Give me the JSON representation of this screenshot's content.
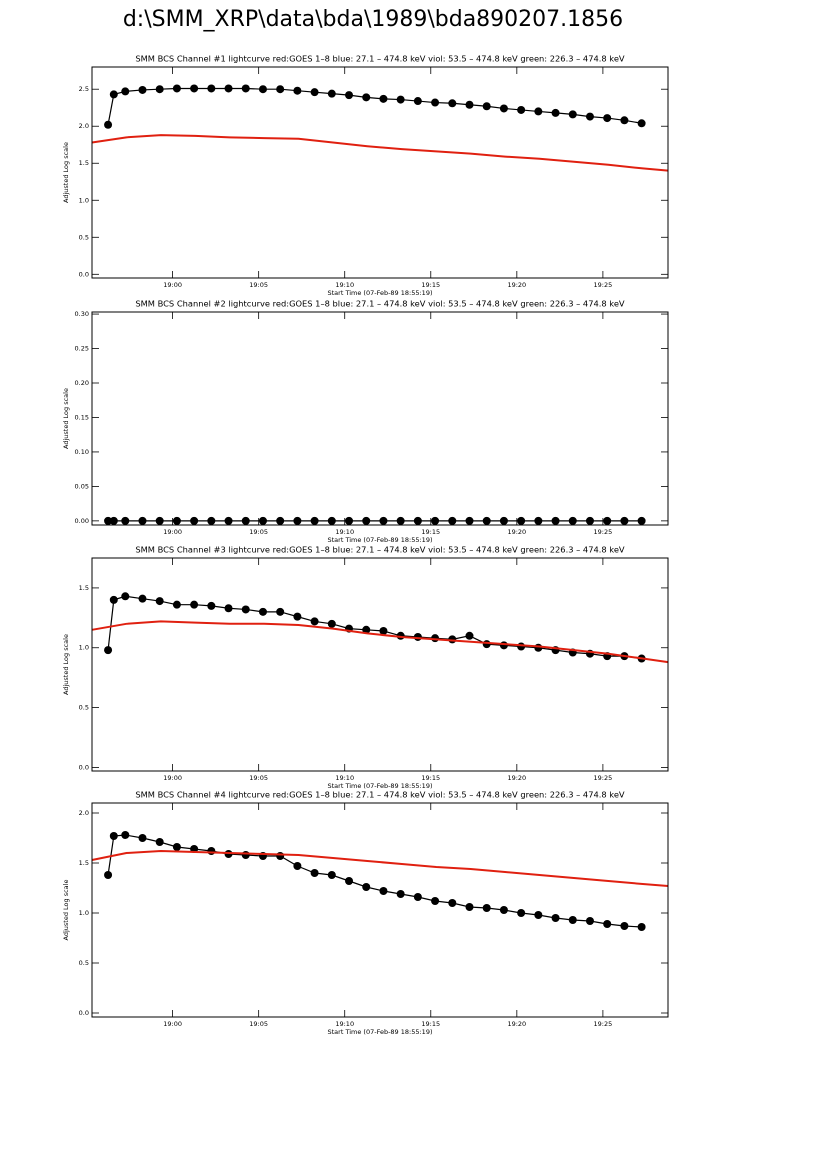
{
  "title": "d:\\SMM_XRP\\data\\bda\\1989\\bda890207.1856",
  "chart_data": [
    {
      "type": "line",
      "title": "SMM BCS Channel #1 lightcurve  red:GOES 1–8  blue: 27.1 – 474.8 keV  viol: 53.5 – 474.8 keV  green: 226.3 – 474.8 keV",
      "xlabel": "Start Time (07-Feb-89 18:55:19)",
      "ylabel": "Adjusted Log scale",
      "xlim": [
        "18:55:19",
        "19:28:47"
      ],
      "xticks": [
        "19:00",
        "19:05",
        "19:10",
        "19:15",
        "19:20",
        "19:25"
      ],
      "ylim": [
        -0.05,
        2.8
      ],
      "yticks": [
        {
          "value": 0,
          "label": "0.0"
        },
        0.5,
        {
          "value": 1,
          "label": "1.0"
        },
        1.5,
        {
          "value": 2,
          "label": "2.0"
        },
        2.5
      ],
      "series": [
        {
          "color": "#000000",
          "markers": true,
          "x": [
            "18:56:15",
            "18:56:35",
            "18:57:15",
            "18:58:15",
            "18:59:15",
            "19:00:15",
            "19:01:15",
            "19:02:15",
            "19:03:15",
            "19:04:15",
            "19:05:15",
            "19:06:15",
            "19:07:15",
            "19:08:15",
            "19:09:15",
            "19:10:15",
            "19:11:15",
            "19:12:15",
            "19:13:15",
            "19:14:15",
            "19:15:15",
            "19:16:15",
            "19:17:15",
            "19:18:15",
            "19:19:15",
            "19:20:15",
            "19:21:15",
            "19:22:15",
            "19:23:15",
            "19:24:15",
            "19:25:15",
            "19:26:15",
            "19:27:15"
          ],
          "values": [
            2.02,
            2.43,
            2.47,
            2.49,
            2.5,
            2.51,
            2.51,
            2.51,
            2.51,
            2.51,
            2.5,
            2.5,
            2.48,
            2.46,
            2.44,
            2.42,
            2.39,
            2.37,
            2.36,
            2.34,
            2.32,
            2.31,
            2.29,
            2.27,
            2.24,
            2.22,
            2.2,
            2.18,
            2.16,
            2.13,
            2.11,
            2.08,
            2.04
          ]
        },
        {
          "color": "#e02010",
          "markers": false,
          "x": [
            "18:55:19",
            "18:57:19",
            "18:59:19",
            "19:01:19",
            "19:03:19",
            "19:05:19",
            "19:07:19",
            "19:09:19",
            "19:11:19",
            "19:13:19",
            "19:15:19",
            "19:17:19",
            "19:19:19",
            "19:21:19",
            "19:23:19",
            "19:25:19",
            "19:27:19",
            "19:28:47"
          ],
          "values": [
            1.78,
            1.85,
            1.88,
            1.87,
            1.85,
            1.84,
            1.83,
            1.78,
            1.73,
            1.69,
            1.66,
            1.63,
            1.59,
            1.56,
            1.52,
            1.48,
            1.43,
            1.4
          ]
        }
      ]
    },
    {
      "type": "line",
      "title": "SMM BCS Channel #2 lightcurve  red:GOES 1–8  blue: 27.1 – 474.8 keV  viol: 53.5 – 474.8 keV  green: 226.3 – 474.8 keV",
      "xlabel": "Start Time (07-Feb-89 18:55:19)",
      "ylabel": "Adjusted Log scale",
      "xlim": [
        "18:55:19",
        "19:28:47"
      ],
      "xticks": [
        "19:00",
        "19:05",
        "19:10",
        "19:15",
        "19:20",
        "19:25"
      ],
      "ylim": [
        -0.006,
        0.303
      ],
      "yticks": [
        {
          "value": 0,
          "label": "0.00"
        },
        0.05,
        {
          "value": 0.1,
          "label": "0.10"
        },
        0.15,
        {
          "value": 0.2,
          "label": "0.20"
        },
        0.25,
        {
          "value": 0.3,
          "label": "0.30"
        }
      ],
      "series": [
        {
          "color": "#000000",
          "markers": true,
          "x": [
            "18:56:15",
            "18:56:35",
            "18:57:15",
            "18:58:15",
            "18:59:15",
            "19:00:15",
            "19:01:15",
            "19:02:15",
            "19:03:15",
            "19:04:15",
            "19:05:15",
            "19:06:15",
            "19:07:15",
            "19:08:15",
            "19:09:15",
            "19:10:15",
            "19:11:15",
            "19:12:15",
            "19:13:15",
            "19:14:15",
            "19:15:15",
            "19:16:15",
            "19:17:15",
            "19:18:15",
            "19:19:15",
            "19:20:15",
            "19:21:15",
            "19:22:15",
            "19:23:15",
            "19:24:15",
            "19:25:15",
            "19:26:15",
            "19:27:15"
          ],
          "values": [
            0,
            0,
            0,
            0,
            0,
            0,
            0,
            0,
            0,
            0,
            0,
            0,
            0,
            0,
            0,
            0,
            0,
            0,
            0,
            0,
            0,
            0,
            0,
            0,
            0,
            0,
            0,
            0,
            0,
            0,
            0,
            0,
            0
          ]
        }
      ]
    },
    {
      "type": "line",
      "title": "SMM BCS Channel #3 lightcurve  red:GOES 1–8  blue: 27.1 – 474.8 keV  viol: 53.5 – 474.8 keV  green: 226.3 – 474.8 keV",
      "xlabel": "Start Time (07-Feb-89 18:55:19)",
      "ylabel": "Adjusted Log scale",
      "xlim": [
        "18:55:19",
        "19:28:47"
      ],
      "xticks": [
        "19:00",
        "19:05",
        "19:10",
        "19:15",
        "19:20",
        "19:25"
      ],
      "ylim": [
        -0.03,
        1.75
      ],
      "yticks": [
        {
          "value": 0,
          "label": "0.0"
        },
        0.5,
        {
          "value": 1,
          "label": "1.0"
        },
        1.5
      ],
      "series": [
        {
          "color": "#000000",
          "markers": true,
          "x": [
            "18:56:15",
            "18:56:35",
            "18:57:15",
            "18:58:15",
            "18:59:15",
            "19:00:15",
            "19:01:15",
            "19:02:15",
            "19:03:15",
            "19:04:15",
            "19:05:15",
            "19:06:15",
            "19:07:15",
            "19:08:15",
            "19:09:15",
            "19:10:15",
            "19:11:15",
            "19:12:15",
            "19:13:15",
            "19:14:15",
            "19:15:15",
            "19:16:15",
            "19:17:15",
            "19:18:15",
            "19:19:15",
            "19:20:15",
            "19:21:15",
            "19:22:15",
            "19:23:15",
            "19:24:15",
            "19:25:15",
            "19:26:15",
            "19:27:15"
          ],
          "values": [
            0.98,
            1.4,
            1.43,
            1.41,
            1.39,
            1.36,
            1.36,
            1.35,
            1.33,
            1.32,
            1.3,
            1.3,
            1.26,
            1.22,
            1.2,
            1.16,
            1.15,
            1.14,
            1.1,
            1.09,
            1.08,
            1.07,
            1.1,
            1.03,
            1.02,
            1.01,
            1.0,
            0.98,
            0.96,
            0.95,
            0.93,
            0.93,
            0.91
          ]
        },
        {
          "color": "#e02010",
          "markers": false,
          "x": [
            "18:55:19",
            "18:57:19",
            "18:59:19",
            "19:01:19",
            "19:03:19",
            "19:05:19",
            "19:07:19",
            "19:09:19",
            "19:11:19",
            "19:13:19",
            "19:15:19",
            "19:17:19",
            "19:19:19",
            "19:21:19",
            "19:23:19",
            "19:25:19",
            "19:27:19",
            "19:28:47"
          ],
          "values": [
            1.15,
            1.2,
            1.22,
            1.21,
            1.2,
            1.2,
            1.19,
            1.16,
            1.12,
            1.09,
            1.07,
            1.05,
            1.03,
            1.01,
            0.98,
            0.95,
            0.91,
            0.88
          ]
        }
      ]
    },
    {
      "type": "line",
      "title": "SMM BCS Channel #4 lightcurve  red:GOES 1–8  blue: 27.1 – 474.8 keV  viol: 53.5 – 474.8 keV  green: 226.3 – 474.8 keV",
      "xlabel": "Start Time (07-Feb-89 18:55:19)",
      "ylabel": "Adjusted Log scale",
      "xlim": [
        "18:55:19",
        "19:28:47"
      ],
      "xticks": [
        "19:00",
        "19:05",
        "19:10",
        "19:15",
        "19:20",
        "19:25"
      ],
      "ylim": [
        -0.04,
        2.1
      ],
      "yticks": [
        {
          "value": 0,
          "label": "0.0"
        },
        0.5,
        {
          "value": 1,
          "label": "1.0"
        },
        1.5,
        {
          "value": 2,
          "label": "2.0"
        }
      ],
      "series": [
        {
          "color": "#000000",
          "markers": true,
          "x": [
            "18:56:15",
            "18:56:35",
            "18:57:15",
            "18:58:15",
            "18:59:15",
            "19:00:15",
            "19:01:15",
            "19:02:15",
            "19:03:15",
            "19:04:15",
            "19:05:15",
            "19:06:15",
            "19:07:15",
            "19:08:15",
            "19:09:15",
            "19:10:15",
            "19:11:15",
            "19:12:15",
            "19:13:15",
            "19:14:15",
            "19:15:15",
            "19:16:15",
            "19:17:15",
            "19:18:15",
            "19:19:15",
            "19:20:15",
            "19:21:15",
            "19:22:15",
            "19:23:15",
            "19:24:15",
            "19:25:15",
            "19:26:15",
            "19:27:15"
          ],
          "values": [
            1.38,
            1.77,
            1.78,
            1.75,
            1.71,
            1.66,
            1.64,
            1.62,
            1.59,
            1.58,
            1.57,
            1.57,
            1.47,
            1.4,
            1.38,
            1.32,
            1.26,
            1.22,
            1.19,
            1.16,
            1.12,
            1.1,
            1.06,
            1.05,
            1.03,
            1.0,
            0.98,
            0.95,
            0.93,
            0.92,
            0.89,
            0.87,
            0.86
          ]
        },
        {
          "color": "#e02010",
          "markers": false,
          "x": [
            "18:55:19",
            "18:57:19",
            "18:59:19",
            "19:01:19",
            "19:03:19",
            "19:05:19",
            "19:07:19",
            "19:09:19",
            "19:11:19",
            "19:13:19",
            "19:15:19",
            "19:17:19",
            "19:19:19",
            "19:21:19",
            "19:23:19",
            "19:25:19",
            "19:27:19",
            "19:28:47"
          ],
          "values": [
            1.53,
            1.6,
            1.62,
            1.61,
            1.6,
            1.59,
            1.58,
            1.55,
            1.52,
            1.49,
            1.46,
            1.44,
            1.41,
            1.38,
            1.35,
            1.32,
            1.29,
            1.27
          ]
        }
      ]
    }
  ]
}
